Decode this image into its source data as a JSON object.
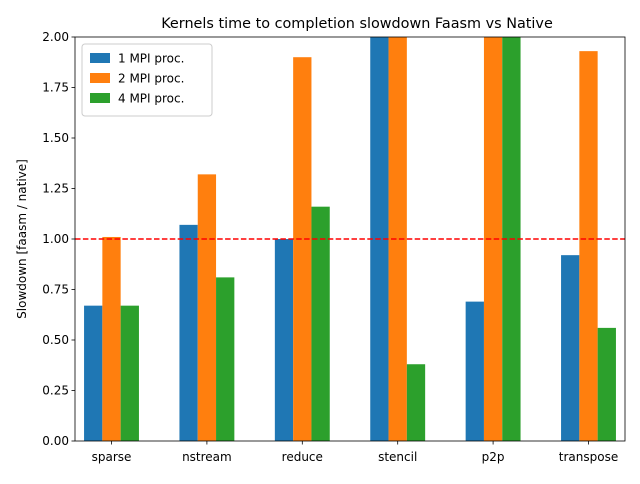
{
  "chart_data": {
    "type": "bar",
    "title": "Kernels time to completion slowdown Faasm vs Native",
    "xlabel": "",
    "ylabel": "Slowdown [faasm / native]",
    "ylim": [
      0,
      2.0
    ],
    "yticks": [
      "0.00",
      "0.25",
      "0.50",
      "0.75",
      "1.00",
      "1.25",
      "1.50",
      "1.75",
      "2.00"
    ],
    "categories": [
      "sparse",
      "nstream",
      "reduce",
      "stencil",
      "p2p",
      "transpose"
    ],
    "series": [
      {
        "name": "1 MPI proc.",
        "color": "#1f77b4",
        "values": [
          0.67,
          1.07,
          1.0,
          2.0,
          0.69,
          0.92
        ]
      },
      {
        "name": "2 MPI proc.",
        "color": "#ff7f0e",
        "values": [
          1.01,
          1.32,
          1.9,
          2.0,
          2.0,
          1.93
        ]
      },
      {
        "name": "4 MPI proc.",
        "color": "#2ca02c",
        "values": [
          0.67,
          0.81,
          1.16,
          0.38,
          2.0,
          0.56
        ]
      }
    ],
    "reference_line": {
      "value": 1.0,
      "color": "#ff0000",
      "style": "dashed"
    },
    "legend_position": "top-left",
    "grid": false
  }
}
